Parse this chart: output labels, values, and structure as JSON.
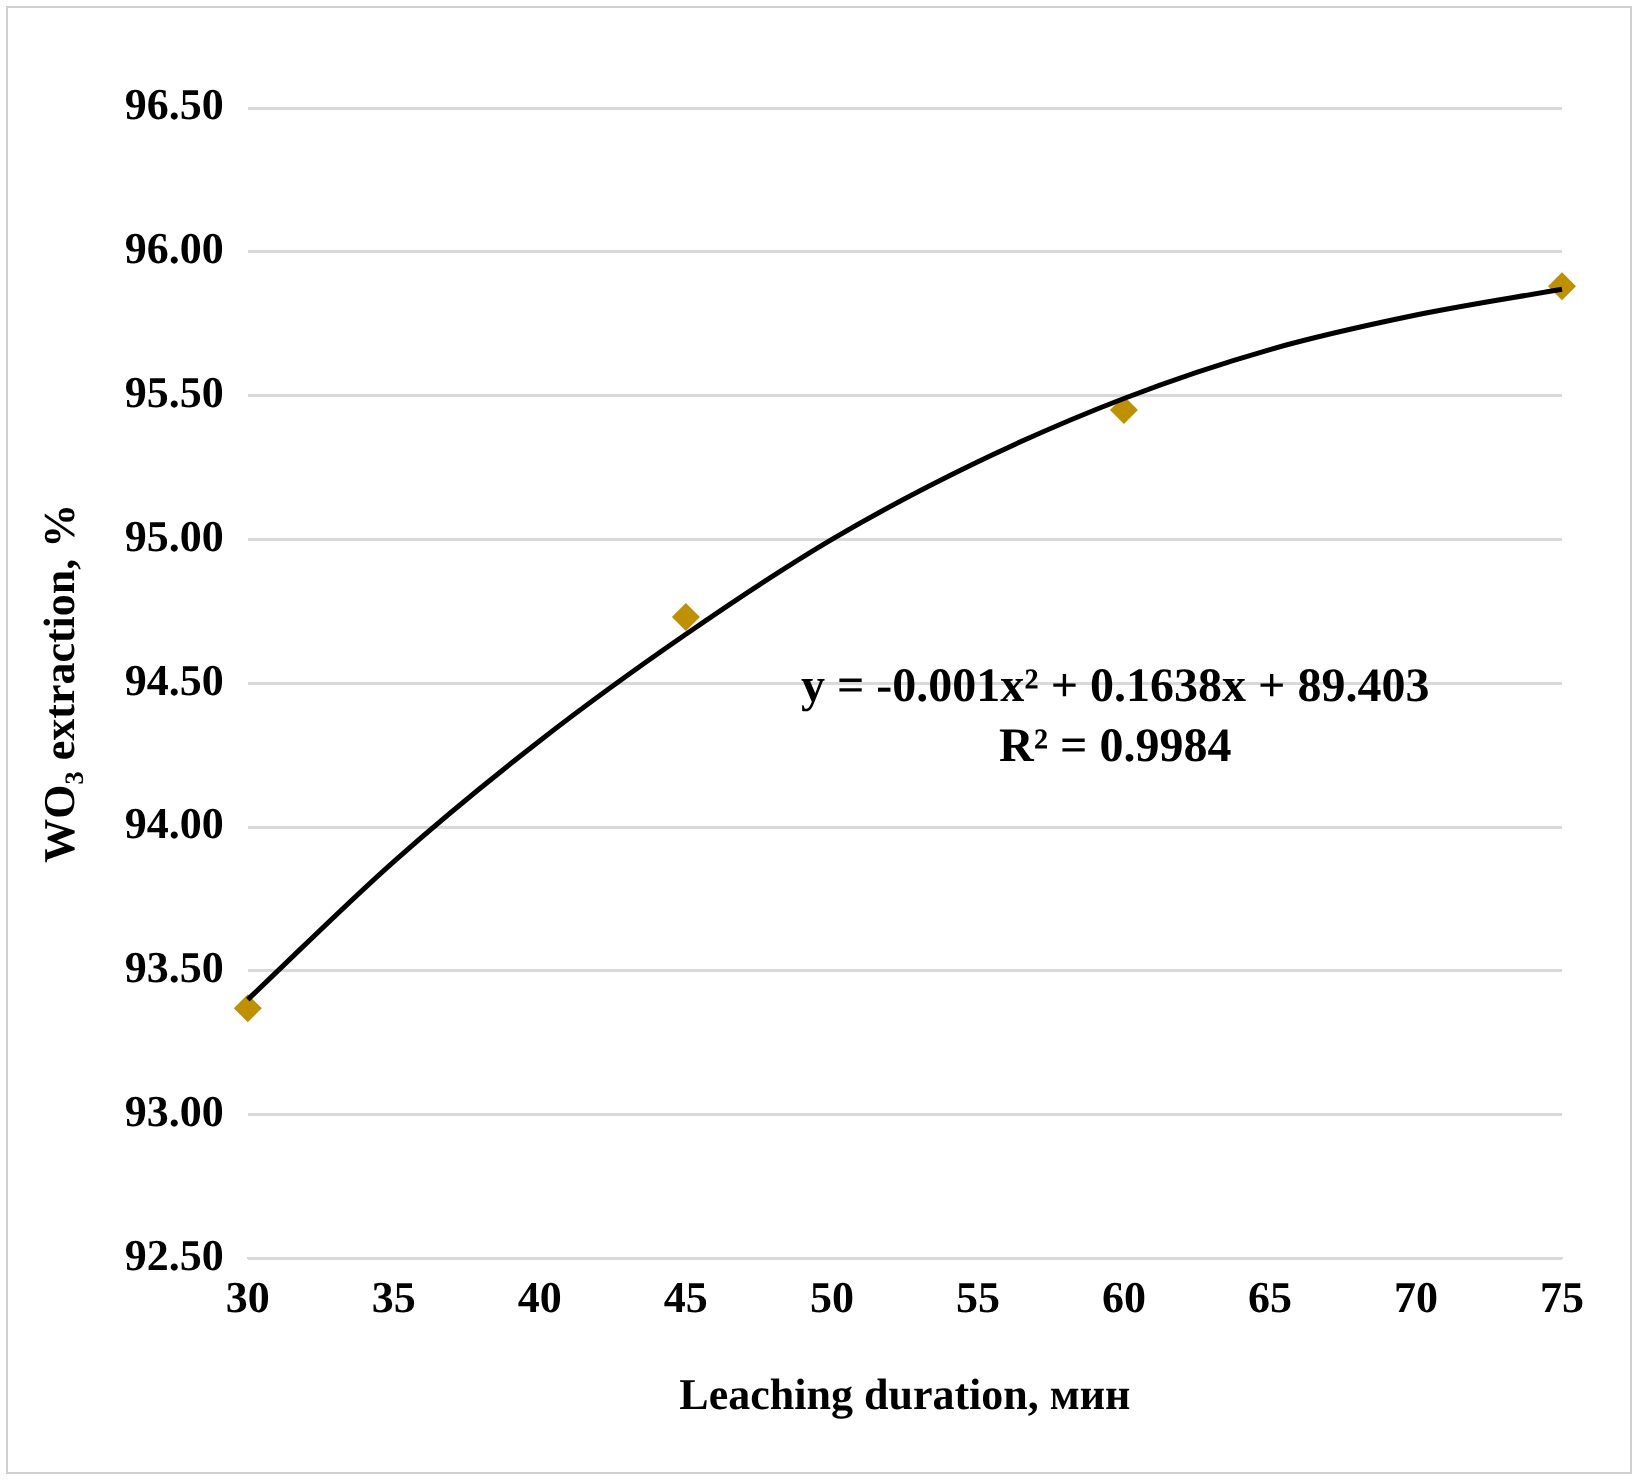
{
  "chart_data": {
    "type": "scatter",
    "xlabel": "Leaching duration, мин",
    "ylabel": "WO₃ extraction, %",
    "series": [
      {
        "type": "scatter",
        "color": "#bf9000",
        "marker": "diamond",
        "x": [
          30,
          45,
          60,
          75
        ],
        "values": [
          93.37,
          94.73,
          95.45,
          95.88
        ]
      },
      {
        "type": "line",
        "color": "#000000",
        "marker": "none",
        "x": [
          30,
          35,
          40,
          45,
          50,
          55,
          60,
          65,
          70,
          75
        ],
        "values": [
          93.4,
          93.88,
          94.3,
          94.67,
          95.0,
          95.27,
          95.49,
          95.66,
          95.78,
          95.87
        ]
      }
    ],
    "xlim": [
      30,
      75
    ],
    "xticks": [
      30,
      35,
      40,
      45,
      50,
      55,
      60,
      65,
      70,
      75
    ],
    "ylim": [
      92.5,
      96.5
    ],
    "yticks": [
      {
        "value": 92.5,
        "label": "92.50"
      },
      {
        "value": 93,
        "label": "93.00"
      },
      {
        "value": 93.5,
        "label": "93.50"
      },
      {
        "value": 94,
        "label": "94.00"
      },
      {
        "value": 94.5,
        "label": "94.50"
      },
      {
        "value": 95,
        "label": "95.00"
      },
      {
        "value": 95.5,
        "label": "95.50"
      },
      {
        "value": 96,
        "label": "96.00"
      },
      {
        "value": 96.5,
        "label": "96.50"
      }
    ],
    "grid": "y",
    "legend": false,
    "annotations": [
      "y = -0.001x² + 0.1638x + 89.403",
      "R² = 0.9984"
    ]
  }
}
